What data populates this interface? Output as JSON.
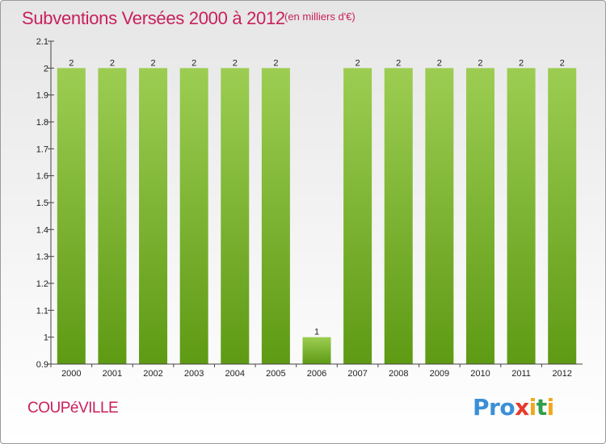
{
  "header": {
    "title": "Subventions Versées 2000 à 2012",
    "subtitle": "(en milliers d'€)"
  },
  "footer": {
    "commune": "COUPéVILLE",
    "logo_text": "Proxiti"
  },
  "colors": {
    "title": "#c8205c",
    "bar_top": "#9ccd52",
    "bar_bottom": "#5e9a14"
  },
  "chart_data": {
    "type": "bar",
    "title": "Subventions Versées 2000 à 2012",
    "subtitle": "(en milliers d'€)",
    "categories": [
      "2000",
      "2001",
      "2002",
      "2003",
      "2004",
      "2005",
      "2006",
      "2007",
      "2008",
      "2009",
      "2010",
      "2011",
      "2012"
    ],
    "values": [
      2,
      2,
      2,
      2,
      2,
      2,
      1,
      2,
      2,
      2,
      2,
      2,
      2
    ],
    "data_labels": [
      "2",
      "2",
      "2",
      "2",
      "2",
      "2",
      "1",
      "2",
      "2",
      "2",
      "2",
      "2",
      "2"
    ],
    "ylim": [
      0.9,
      2.1
    ],
    "yticks": [
      "0.9",
      "1",
      "1.1",
      "1.2",
      "1.3",
      "1.4",
      "1.5",
      "1.6",
      "1.7",
      "1.8",
      "1.9",
      "2",
      "2.1"
    ],
    "grid": false,
    "legend": "none"
  }
}
